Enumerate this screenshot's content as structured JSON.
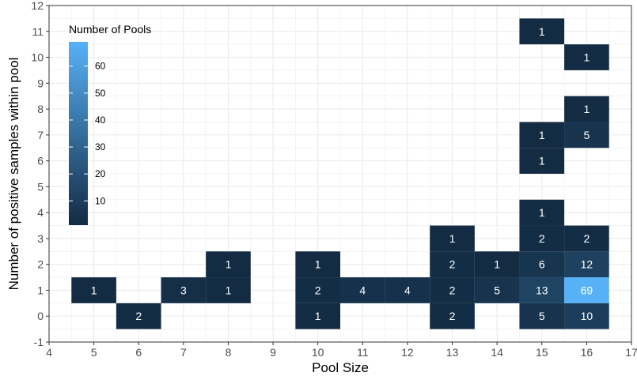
{
  "chart_data": {
    "type": "heatmap",
    "xlabel": "Pool Size",
    "ylabel": "Number of positive samples within pool",
    "xlim": [
      4,
      17
    ],
    "ylim": [
      -1,
      12
    ],
    "x_ticks": [
      4,
      5,
      6,
      7,
      8,
      9,
      10,
      11,
      12,
      13,
      14,
      15,
      16,
      17
    ],
    "y_ticks": [
      -1,
      0,
      1,
      2,
      3,
      4,
      5,
      6,
      7,
      8,
      9,
      10,
      11,
      12
    ],
    "grid": true,
    "legend": {
      "title": "Number of Pools",
      "placement": "top-left",
      "ticks": [
        10,
        20,
        30,
        40,
        50,
        60
      ],
      "min": 1,
      "max": 69,
      "low_color": "#132b43",
      "high_color": "#56b1f7"
    },
    "cells": [
      {
        "x": 5,
        "y": 1,
        "value": 1
      },
      {
        "x": 6,
        "y": 0,
        "value": 2
      },
      {
        "x": 7,
        "y": 1,
        "value": 3
      },
      {
        "x": 8,
        "y": 1,
        "value": 1
      },
      {
        "x": 8,
        "y": 2,
        "value": 1
      },
      {
        "x": 10,
        "y": 0,
        "value": 1
      },
      {
        "x": 10,
        "y": 1,
        "value": 2
      },
      {
        "x": 10,
        "y": 2,
        "value": 1
      },
      {
        "x": 11,
        "y": 1,
        "value": 4
      },
      {
        "x": 12,
        "y": 1,
        "value": 4
      },
      {
        "x": 13,
        "y": 0,
        "value": 2
      },
      {
        "x": 13,
        "y": 1,
        "value": 2
      },
      {
        "x": 13,
        "y": 2,
        "value": 2
      },
      {
        "x": 13,
        "y": 3,
        "value": 1
      },
      {
        "x": 14,
        "y": 1,
        "value": 5
      },
      {
        "x": 14,
        "y": 2,
        "value": 1
      },
      {
        "x": 15,
        "y": 0,
        "value": 5
      },
      {
        "x": 15,
        "y": 1,
        "value": 13
      },
      {
        "x": 15,
        "y": 2,
        "value": 6
      },
      {
        "x": 15,
        "y": 3,
        "value": 2
      },
      {
        "x": 15,
        "y": 4,
        "value": 1
      },
      {
        "x": 15,
        "y": 6,
        "value": 1
      },
      {
        "x": 15,
        "y": 7,
        "value": 1
      },
      {
        "x": 15,
        "y": 11,
        "value": 1
      },
      {
        "x": 16,
        "y": 0,
        "value": 10
      },
      {
        "x": 16,
        "y": 1,
        "value": 69
      },
      {
        "x": 16,
        "y": 2,
        "value": 12
      },
      {
        "x": 16,
        "y": 3,
        "value": 2
      },
      {
        "x": 16,
        "y": 7,
        "value": 5
      },
      {
        "x": 16,
        "y": 8,
        "value": 1
      },
      {
        "x": 16,
        "y": 10,
        "value": 1
      }
    ]
  }
}
